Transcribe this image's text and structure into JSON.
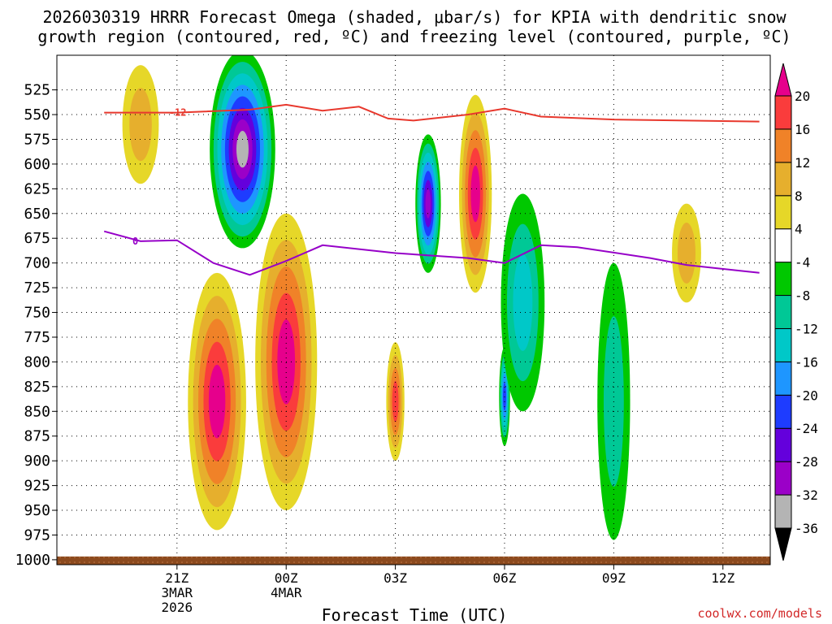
{
  "title_line1": "2026030319 HRRR Forecast Omega (shaded, μbar/s) for KPIA with dendritic snow",
  "title_line2": "growth region (contoured, red, ºC) and freezing level (contoured, purple, ºC)",
  "watermark": "coolwx.com/models",
  "chart_data": {
    "type": "heatmap",
    "title": "2026030319 HRRR Forecast Omega (shaded, μbar/s) for KPIA with dendritic snow growth region (contoured, red, ºC) and freezing level (contoured, purple, ºC)",
    "xlabel": "Forecast Time (UTC)",
    "ylabel": "",
    "x_hours_from_19Z": [
      0,
      18
    ],
    "ylim_hPa": [
      1005,
      490
    ],
    "y_ticks": [
      525,
      550,
      575,
      600,
      625,
      650,
      675,
      700,
      725,
      750,
      775,
      800,
      825,
      850,
      875,
      900,
      925,
      950,
      975,
      1000
    ],
    "x_ticks": [
      {
        "h": 2,
        "label": "21Z",
        "sub1": "3MAR",
        "sub2": "2026"
      },
      {
        "h": 5,
        "label": "00Z",
        "sub1": "4MAR",
        "sub2": ""
      },
      {
        "h": 8,
        "label": "03Z",
        "sub1": "",
        "sub2": ""
      },
      {
        "h": 11,
        "label": "06Z",
        "sub1": "",
        "sub2": ""
      },
      {
        "h": 14,
        "label": "09Z",
        "sub1": "",
        "sub2": ""
      },
      {
        "h": 17,
        "label": "12Z",
        "sub1": "",
        "sub2": ""
      }
    ],
    "colorbar": {
      "levels": [
        -36,
        -32,
        -28,
        -24,
        -20,
        -16,
        -12,
        -8,
        -4,
        4,
        8,
        12,
        16,
        20
      ],
      "labels": [
        "20",
        "16",
        "12",
        "8",
        "4",
        "-4",
        "-8",
        "-12",
        "-16",
        "-20",
        "-24",
        "-28",
        "-32",
        "-36"
      ],
      "colors": [
        "#000000",
        "#b4b4b4",
        "#9b00c8",
        "#6400dc",
        "#1e3cff",
        "#1e96ff",
        "#00c8c8",
        "#00c896",
        "#00c800",
        "#ffffff",
        "#e6d728",
        "#e6af2d",
        "#f08228",
        "#fa3c3c",
        "#e6008c"
      ]
    },
    "dgz_contours": [
      {
        "level": -12,
        "label": "-12",
        "color": "#e8382d",
        "points": [
          [
            0,
            548
          ],
          [
            2,
            548
          ],
          [
            4,
            545
          ],
          [
            5,
            540
          ],
          [
            6,
            546
          ],
          [
            7,
            542
          ],
          [
            7.8,
            554
          ],
          [
            8.5,
            556
          ],
          [
            10,
            550
          ],
          [
            11,
            544
          ],
          [
            12,
            552
          ],
          [
            14,
            555
          ],
          [
            18,
            557
          ]
        ]
      }
    ],
    "freezing_contour": {
      "level": 0,
      "label": "0",
      "color": "#9600c8",
      "points": [
        [
          0,
          668
        ],
        [
          1,
          678
        ],
        [
          2,
          677
        ],
        [
          3,
          700
        ],
        [
          4,
          712
        ],
        [
          5,
          698
        ],
        [
          6,
          682
        ],
        [
          8,
          690
        ],
        [
          10,
          695
        ],
        [
          11,
          700
        ],
        [
          12,
          682
        ],
        [
          13,
          684
        ],
        [
          15,
          695
        ],
        [
          16,
          702
        ],
        [
          17.5,
          708
        ],
        [
          18,
          710
        ]
      ]
    },
    "omega_field": [
      {
        "value": -34,
        "hour": 3.8,
        "p": 585,
        "width_h": 0.9,
        "depth_hPa": 100
      },
      {
        "value": -30,
        "hour": 8.9,
        "p": 640,
        "width_h": 0.35,
        "depth_hPa": 70
      },
      {
        "value": -20,
        "hour": 11.0,
        "p": 835,
        "width_h": 0.15,
        "depth_hPa": 50
      },
      {
        "value": -12,
        "hour": 11.5,
        "p": 740,
        "width_h": 0.6,
        "depth_hPa": 110
      },
      {
        "value": -10,
        "hour": 14.0,
        "p": 840,
        "width_h": 0.45,
        "depth_hPa": 140
      },
      {
        "value": 20,
        "hour": 3.1,
        "p": 840,
        "width_h": 0.8,
        "depth_hPa": 130
      },
      {
        "value": 20,
        "hour": 5.0,
        "p": 800,
        "width_h": 0.85,
        "depth_hPa": 150
      },
      {
        "value": 20,
        "hour": 10.2,
        "p": 630,
        "width_h": 0.45,
        "depth_hPa": 100
      },
      {
        "value": 16,
        "hour": 8.0,
        "p": 840,
        "width_h": 0.25,
        "depth_hPa": 60
      },
      {
        "value": 8,
        "hour": 16.0,
        "p": 690,
        "width_h": 0.4,
        "depth_hPa": 50
      },
      {
        "value": 8,
        "hour": 1.0,
        "p": 560,
        "width_h": 0.5,
        "depth_hPa": 60
      }
    ]
  }
}
